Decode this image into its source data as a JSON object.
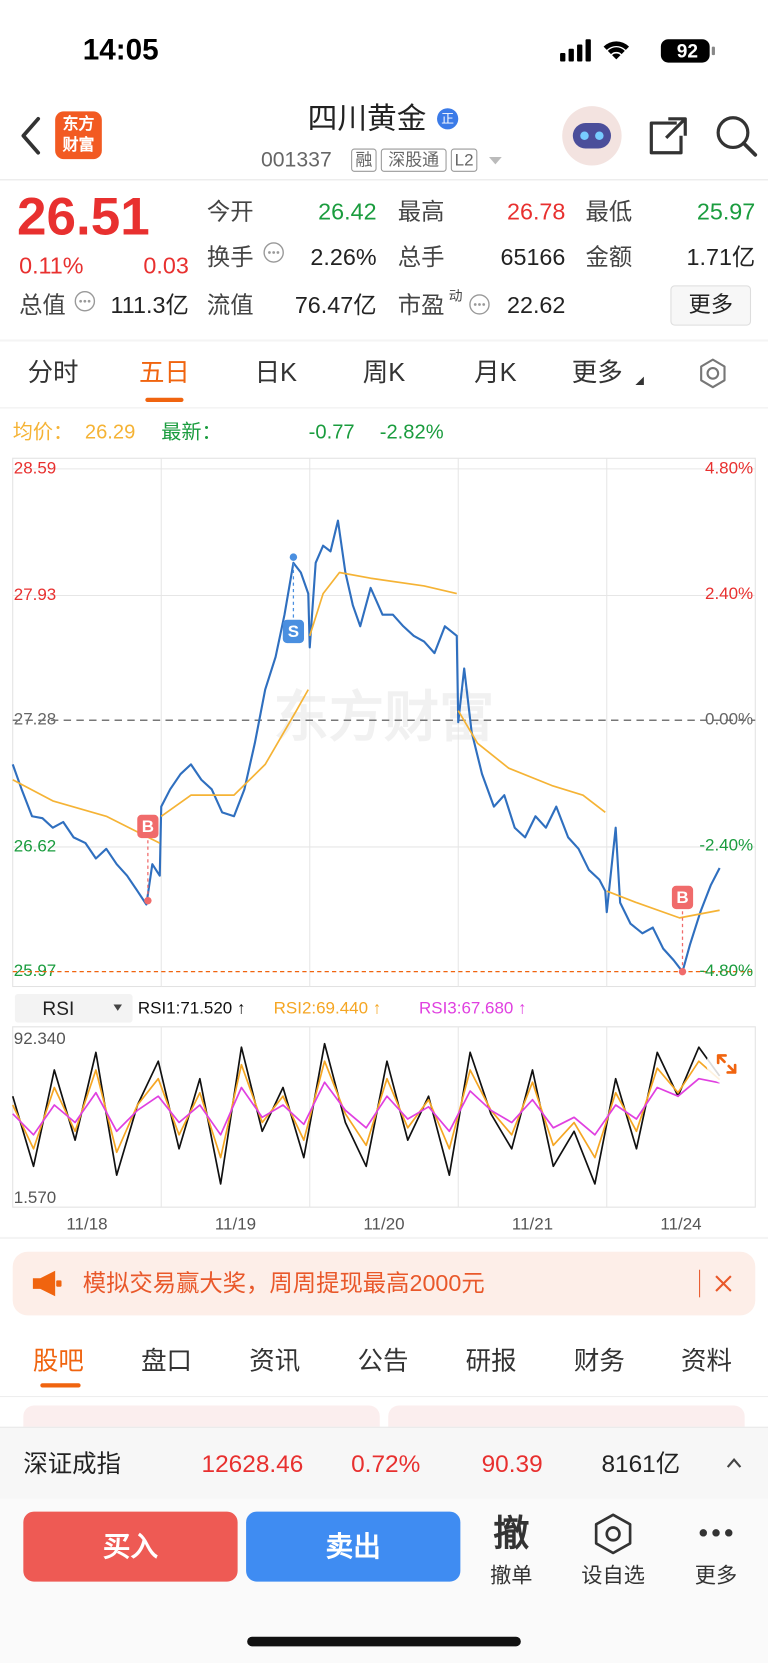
{
  "status_bar": {
    "time": "14:05",
    "battery": "92"
  },
  "header": {
    "logo": [
      "东方",
      "财富"
    ],
    "title": "四川黄金",
    "badge": "正",
    "code": "001337",
    "tags": [
      "融",
      "深股通",
      "L2"
    ]
  },
  "quote": {
    "price": "26.51",
    "change_pct": "0.11%",
    "change": "0.03",
    "stats": [
      {
        "label": "今开",
        "value": "26.42",
        "color": "#1a9c3e"
      },
      {
        "label": "最高",
        "value": "26.78",
        "color": "#e8302f"
      },
      {
        "label": "最低",
        "value": "25.97",
        "color": "#1a9c3e"
      },
      {
        "label": "换手",
        "value": "2.26%",
        "color": "#222222"
      },
      {
        "label": "总手",
        "value": "65166",
        "color": "#222222"
      },
      {
        "label": "金额",
        "value": "1.71亿",
        "color": "#222222"
      },
      {
        "label": "总值",
        "value": "111.3亿",
        "color": "#222222"
      },
      {
        "label": "流值",
        "value": "76.47亿",
        "color": "#222222"
      },
      {
        "label": "市盈",
        "sup": "动",
        "value": "22.62",
        "color": "#222222"
      }
    ],
    "more": "更多"
  },
  "tabs": [
    "分时",
    "五日",
    "日K",
    "周K",
    "月K",
    "更多"
  ],
  "chart_data": [
    {
      "type": "line",
      "watermark": "东方财富",
      "change": -0.77,
      "change_pct": "-2.82%",
      "xlim": [
        0,
        5
      ],
      "xgrid": [
        1,
        2,
        3,
        4
      ],
      "ylim": [
        25.97,
        28.59
      ],
      "yticks": [
        25.97,
        26.62,
        27.28,
        27.93,
        28.59
      ],
      "y2lim": [
        -4.8,
        4.8
      ],
      "y2ticks": [
        {
          "value": -4.8,
          "label": "-4.80%"
        },
        {
          "value": -2.4,
          "label": "-2.40%"
        },
        {
          "value": 0,
          "label": "0.00%"
        },
        {
          "value": 2.4,
          "label": "2.40%"
        },
        {
          "value": 4.8,
          "label": "4.80%"
        }
      ],
      "ref_line": 27.28,
      "low_line": 25.97,
      "series": [
        {
          "name": "最新：",
          "color": "#2f6fbf",
          "x": [
            0,
            0.06,
            0.13,
            0.2,
            0.27,
            0.34,
            0.41,
            0.49,
            0.56,
            0.63,
            0.7,
            0.77,
            0.84,
            0.9,
            0.94,
            0.99,
            1.0,
            1.06,
            1.13,
            1.2,
            1.27,
            1.34,
            1.41,
            1.49,
            1.56,
            1.63,
            1.7,
            1.77,
            1.83,
            1.89,
            1.94,
            1.99,
            2.0,
            2.04,
            2.09,
            2.14,
            2.19,
            2.24,
            2.29,
            2.34,
            2.41,
            2.49,
            2.56,
            2.63,
            2.7,
            2.77,
            2.84,
            2.91,
            2.99,
            3.0,
            3.04,
            3.09,
            3.16,
            3.24,
            3.31,
            3.38,
            3.45,
            3.52,
            3.59,
            3.66,
            3.74,
            3.81,
            3.88,
            3.95,
            3.99,
            4.0,
            4.06,
            4.09,
            4.16,
            4.24,
            4.31,
            4.38,
            4.45,
            4.51,
            4.56,
            4.63,
            4.7,
            4.76
          ],
          "values": [
            27.05,
            26.92,
            26.78,
            26.77,
            26.72,
            26.75,
            26.67,
            26.64,
            26.56,
            26.61,
            26.53,
            26.47,
            26.39,
            26.32,
            26.53,
            26.47,
            26.83,
            26.92,
            27.0,
            27.05,
            26.97,
            26.92,
            26.8,
            26.78,
            26.92,
            27.16,
            27.44,
            27.61,
            27.83,
            28.1,
            28.05,
            27.94,
            27.66,
            28.1,
            28.19,
            28.16,
            28.32,
            28.05,
            27.88,
            27.77,
            27.97,
            27.83,
            27.83,
            27.77,
            27.72,
            27.69,
            27.63,
            27.77,
            27.72,
            27.27,
            27.55,
            27.22,
            27.0,
            26.83,
            26.89,
            26.72,
            26.67,
            26.78,
            26.72,
            26.83,
            26.67,
            26.61,
            26.5,
            26.45,
            26.39,
            26.28,
            26.72,
            26.33,
            26.22,
            26.17,
            26.2,
            26.09,
            26.03,
            25.97,
            26.11,
            26.28,
            26.42,
            26.51
          ]
        },
        {
          "name": "均价：",
          "color": "#f5b335",
          "x": [
            0,
            0.27,
            0.63,
            0.99,
            0.99,
            1.0,
            1.2,
            1.49,
            1.7,
            1.91,
            1.99,
            1.99,
            2.0,
            2.09,
            2.2,
            2.41,
            2.77,
            2.99,
            2.99,
            3.0,
            3.13,
            3.34,
            3.63,
            3.84,
            3.99,
            3.99,
            4.0,
            4.2,
            4.49,
            4.76
          ],
          "values": [
            26.97,
            26.86,
            26.78,
            26.64,
            null,
            26.78,
            26.89,
            26.89,
            27.05,
            27.33,
            27.44,
            null,
            27.72,
            27.94,
            28.05,
            28.02,
            27.98,
            27.94,
            null,
            27.33,
            27.16,
            27.03,
            26.94,
            26.89,
            26.8,
            null,
            26.39,
            26.33,
            26.25,
            26.29
          ]
        }
      ],
      "annotations": [
        {
          "text": "B",
          "x": 0.91,
          "y": 26.34,
          "color": "#f06b6b",
          "label_side": "above"
        },
        {
          "text": "S",
          "x": 1.89,
          "y": 28.13,
          "color": "#4a8fe0",
          "label_side": "below"
        },
        {
          "text": "B",
          "x": 4.51,
          "y": 25.97,
          "color": "#f06b6b",
          "label_side": "above"
        }
      ]
    },
    {
      "type": "line",
      "indicator": "RSI",
      "xlim": [
        0,
        5
      ],
      "xgrid": [
        1,
        2,
        3,
        4
      ],
      "xticks": [
        {
          "value": 0.5,
          "label": "11/18"
        },
        {
          "value": 1.5,
          "label": "11/19"
        },
        {
          "value": 2.5,
          "label": "11/20"
        },
        {
          "value": 3.5,
          "label": "11/21"
        },
        {
          "value": 4.5,
          "label": "11/24"
        }
      ],
      "ylim": [
        1.57,
        92.34
      ],
      "yticks": [
        {
          "value": 1.57,
          "label": "1.570"
        },
        {
          "value": 92.34,
          "label": "92.340"
        }
      ],
      "x": [
        0,
        0.14,
        0.28,
        0.42,
        0.56,
        0.7,
        0.84,
        0.98,
        1.12,
        1.26,
        1.4,
        1.54,
        1.68,
        1.82,
        1.96,
        2.1,
        2.24,
        2.38,
        2.52,
        2.66,
        2.8,
        2.94,
        3.08,
        3.22,
        3.36,
        3.5,
        3.64,
        3.78,
        3.92,
        4.06,
        4.2,
        4.34,
        4.48,
        4.62,
        4.76
      ],
      "series": [
        {
          "name": "RSI1:71.520 ↑",
          "color": "#111111",
          "values": [
            60,
            20,
            75,
            35,
            85,
            15,
            55,
            80,
            30,
            70,
            10,
            88,
            40,
            65,
            25,
            90,
            45,
            20,
            80,
            35,
            60,
            15,
            85,
            50,
            30,
            75,
            20,
            40,
            10,
            70,
            30,
            85,
            60,
            88,
            71.52
          ]
        },
        {
          "name": "RSI2:69.440 ↑",
          "color": "#f5a623",
          "values": [
            55,
            30,
            65,
            40,
            75,
            28,
            55,
            70,
            38,
            62,
            25,
            78,
            45,
            60,
            35,
            80,
            50,
            32,
            70,
            42,
            58,
            30,
            75,
            52,
            38,
            68,
            32,
            45,
            25,
            62,
            40,
            76,
            62,
            80,
            69.44
          ]
        },
        {
          "name": "RSI3:67.680 ↑",
          "color": "#e040e0",
          "values": [
            50,
            38,
            55,
            45,
            62,
            40,
            52,
            60,
            45,
            55,
            38,
            65,
            48,
            55,
            44,
            68,
            52,
            42,
            60,
            47,
            54,
            40,
            63,
            52,
            45,
            58,
            42,
            48,
            38,
            55,
            47,
            65,
            60,
            70,
            67.68
          ]
        }
      ]
    }
  ],
  "banner": "模拟交易赢大奖，周周提现最高2000元",
  "bottom_tabs": [
    "股吧",
    "盘口",
    "资讯",
    "公告",
    "研报",
    "财务",
    "资料"
  ],
  "index_bar": {
    "name": "深证成指",
    "value": "12628.46",
    "change_pct": "0.72%",
    "change": "90.39",
    "amount": "8161亿"
  },
  "actions": {
    "buy": "买入",
    "sell": "卖出",
    "cancel_icon": "撤",
    "cancel": "撤单",
    "watch": "设自选",
    "more": "更多"
  }
}
